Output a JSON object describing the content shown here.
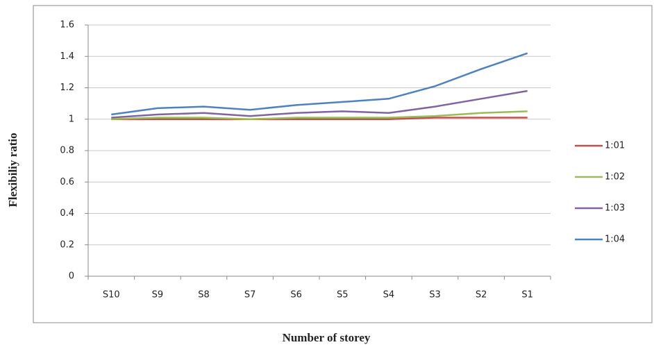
{
  "chart_data": {
    "type": "line",
    "x_label": "Number of storey",
    "y_label": "Flexibiliy ratio",
    "categories": [
      "S10",
      "S9",
      "S8",
      "S7",
      "S6",
      "S5",
      "S4",
      "S3",
      "S2",
      "S1"
    ],
    "series": [
      {
        "name": "1:01",
        "color": "#c0504d",
        "values": [
          1.0,
          1.0,
          1.0,
          1.0,
          1.0,
          1.0,
          1.0,
          1.01,
          1.01,
          1.01
        ]
      },
      {
        "name": "1:02",
        "color": "#9bbb59",
        "values": [
          1.0,
          1.01,
          1.01,
          1.0,
          1.01,
          1.01,
          1.01,
          1.02,
          1.04,
          1.05
        ]
      },
      {
        "name": "1:03",
        "color": "#8064a2",
        "values": [
          1.01,
          1.03,
          1.04,
          1.02,
          1.04,
          1.05,
          1.04,
          1.08,
          1.13,
          1.18
        ]
      },
      {
        "name": "1:04",
        "color": "#4f81bd",
        "values": [
          1.03,
          1.07,
          1.08,
          1.06,
          1.09,
          1.11,
          1.13,
          1.21,
          1.32,
          1.42
        ]
      }
    ],
    "ylim": [
      0,
      1.6
    ],
    "yticks": [
      0,
      0.2,
      0.4,
      0.6,
      0.8,
      1,
      1.2,
      1.4,
      1.6
    ],
    "grid": true,
    "legend": "right"
  }
}
